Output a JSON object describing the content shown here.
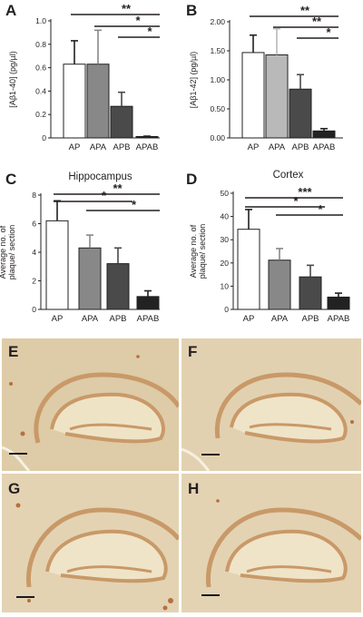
{
  "panel_letters": {
    "A": "A",
    "B": "B",
    "C": "C",
    "D": "D",
    "E": "E",
    "F": "F",
    "G": "G",
    "H": "H"
  },
  "colors": {
    "AP": "#ffffff",
    "APA": "#888888",
    "APA_B": "#b9b9b9",
    "APB": "#4a4a4a",
    "APAB": "#222222",
    "micrograph": "#e3d2b3",
    "stain": "#c9945e"
  },
  "chart_data": [
    {
      "panel": "A",
      "type": "bar",
      "title": "",
      "categories": [
        "AP",
        "APA",
        "APB",
        "APAB"
      ],
      "values": [
        0.63,
        0.63,
        0.27,
        0.01
      ],
      "errors": [
        0.2,
        0.29,
        0.12,
        0.005
      ],
      "ylabel": "[Aβ1-40] (pg/µl)",
      "ylim": [
        0,
        1.0
      ],
      "yticks": [
        "0",
        "0.2",
        "0.4",
        "0.6",
        "0.8",
        "1.0"
      ],
      "significance": [
        {
          "from": "AP",
          "to": "APAB",
          "label": "**"
        },
        {
          "from": "APA",
          "to": "APAB",
          "label": "*"
        },
        {
          "from": "APB",
          "to": "APAB",
          "label": "*"
        }
      ]
    },
    {
      "panel": "B",
      "type": "bar",
      "title": "",
      "categories": [
        "AP",
        "APA",
        "APB",
        "APAB"
      ],
      "values": [
        1.47,
        1.43,
        0.84,
        0.12
      ],
      "errors": [
        0.3,
        0.45,
        0.25,
        0.04
      ],
      "ylabel": "[Aβ1-42] (pg/µl)",
      "ylim": [
        0,
        2.0
      ],
      "yticks": [
        "0.00",
        "0.50",
        "1.00",
        "1.50",
        "2.00"
      ],
      "significance": [
        {
          "from": "AP",
          "to": "APAB",
          "label": "**"
        },
        {
          "from": "APA",
          "to": "APAB",
          "label": "**"
        },
        {
          "from": "APB",
          "to": "APAB",
          "label": "*"
        }
      ]
    },
    {
      "panel": "C",
      "type": "bar",
      "title": "Hippocampus",
      "categories": [
        "AP",
        "APA",
        "APB",
        "APAB"
      ],
      "values": [
        6.2,
        4.3,
        3.2,
        0.9
      ],
      "errors": [
        1.4,
        0.9,
        1.1,
        0.4
      ],
      "ylabel": "Average no. of plaque/ section",
      "ylim": [
        0,
        8
      ],
      "yticks": [
        "0",
        "2",
        "4",
        "6",
        "8"
      ],
      "significance": [
        {
          "from": "AP",
          "to": "APAB",
          "label": "**"
        },
        {
          "from": "AP",
          "to": "APB",
          "label": "*"
        },
        {
          "from": "APA",
          "to": "APAB",
          "label": "*"
        }
      ]
    },
    {
      "panel": "D",
      "type": "bar",
      "title": "Cortex",
      "categories": [
        "AP",
        "APA",
        "APB",
        "APAB"
      ],
      "values": [
        34.5,
        21.2,
        14.0,
        5.3
      ],
      "errors": [
        8.5,
        5.0,
        5.0,
        1.7
      ],
      "ylabel": "Average no. of plaque/ section",
      "ylim": [
        0,
        50
      ],
      "yticks": [
        "0",
        "10",
        "20",
        "30",
        "40",
        "50"
      ],
      "significance": [
        {
          "from": "AP",
          "to": "APAB",
          "label": "***"
        },
        {
          "from": "AP",
          "to": "APB",
          "label": "*"
        },
        {
          "from": "APA",
          "to": "APAB",
          "label": "*"
        }
      ]
    }
  ]
}
